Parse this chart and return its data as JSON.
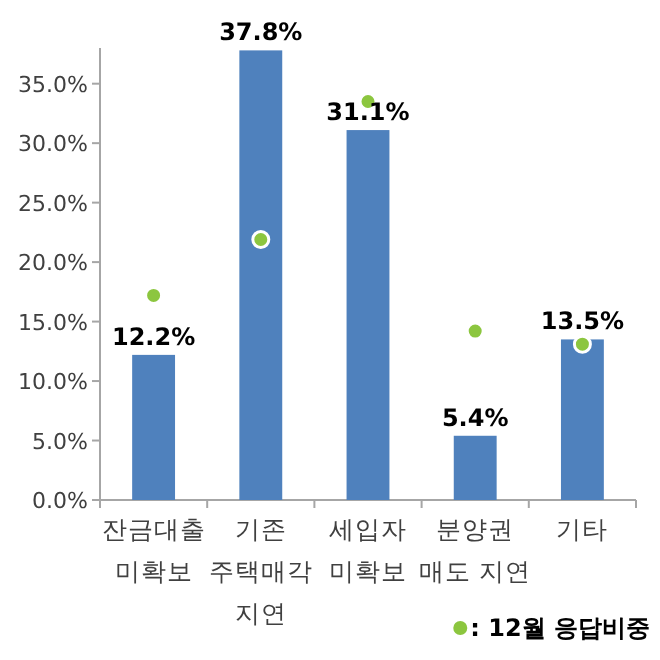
{
  "chart_data": {
    "type": "bar",
    "categories": [
      "잔금대출 미확보",
      "기존 주택매각 지연",
      "세입자 미확보",
      "분양권 매도 지연",
      "기타"
    ],
    "series": [
      {
        "color": "#4f81bd",
        "values": [
          12.2,
          37.8,
          31.1,
          5.4,
          13.5
        ],
        "value_labels": [
          "12.2%",
          "37.8%",
          "31.1%",
          "5.4%",
          "13.5%"
        ]
      },
      {
        "type": "scatter",
        "name": ": 12월 응답비중",
        "color": "#8cc63f",
        "values": [
          17.2,
          21.9,
          33.5,
          14.2,
          13.1
        ]
      }
    ],
    "ylim": [
      0,
      38
    ],
    "yticks": [
      {
        "value": 0,
        "label": "0.0%"
      },
      {
        "value": 5,
        "label": "5.0%"
      },
      {
        "value": 10,
        "label": "10.0%"
      },
      {
        "value": 15,
        "label": "15.0%"
      },
      {
        "value": 20,
        "label": "20.0%"
      },
      {
        "value": 25,
        "label": "25.0%"
      },
      {
        "value": 30,
        "label": "30.0%"
      },
      {
        "value": 35,
        "label": "35.0%"
      }
    ],
    "grid": false,
    "legend": "bottom right",
    "marker": "circle"
  }
}
